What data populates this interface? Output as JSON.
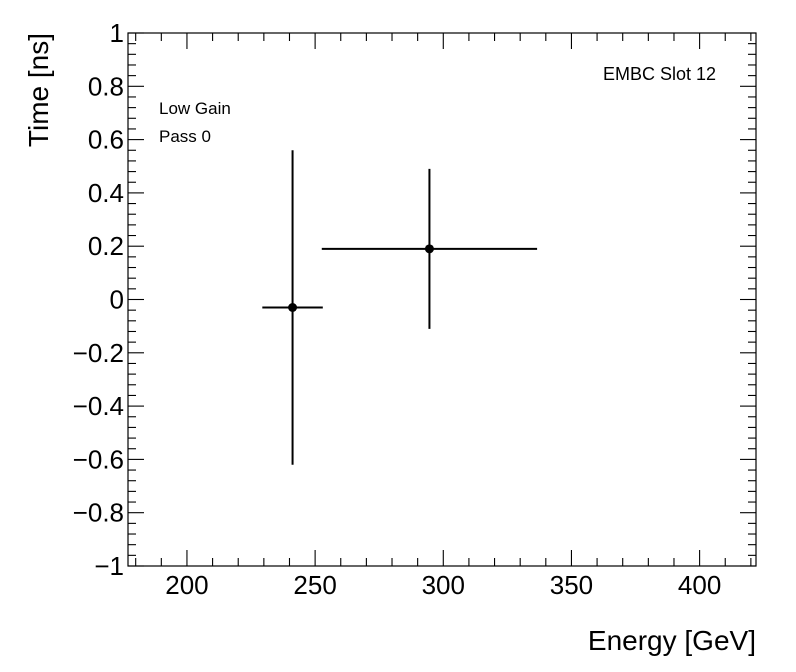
{
  "chart_data": {
    "type": "scatter",
    "xlabel": "Energy [GeV]",
    "ylabel": "Time [ns]",
    "xlim": [
      177,
      422
    ],
    "ylim": [
      -1,
      1
    ],
    "x_ticks": [
      200,
      250,
      300,
      350,
      400
    ],
    "x_tick_labels": [
      "200",
      "250",
      "300",
      "350",
      "400"
    ],
    "y_ticks": [
      -1,
      -0.8,
      -0.6,
      -0.4,
      -0.2,
      0,
      0.2,
      0.4,
      0.6,
      0.8,
      1
    ],
    "y_tick_labels": [
      "−1",
      "−0.8",
      "−0.6",
      "−0.4",
      "−0.2",
      "0",
      "0.2",
      "0.4",
      "0.6",
      "0.8",
      "1"
    ],
    "grid": false,
    "annotations": {
      "top_left": [
        "Low Gain",
        "Pass 0"
      ],
      "top_right": "EMBC Slot 12"
    },
    "points": [
      {
        "x": 241.2,
        "y": -0.03,
        "x_err": 11.8,
        "y_err": 0.59
      },
      {
        "x": 294.6,
        "y": 0.19,
        "x_err": 42.0,
        "y_err": 0.3
      }
    ]
  }
}
